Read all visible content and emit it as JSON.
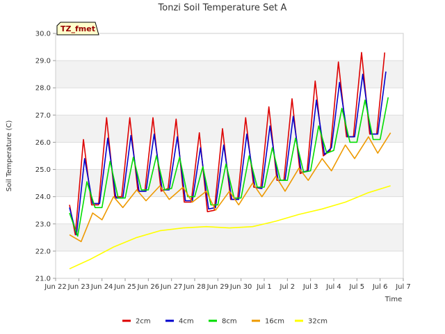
{
  "chart_data": {
    "type": "line",
    "title": "Tonzi Soil Temperature Set A",
    "xlabel": "Time",
    "ylabel": "Soil Temperature (C)",
    "site_label": "TZ_fmet",
    "xlim": [
      0,
      15
    ],
    "ylim": [
      21.0,
      30.0
    ],
    "x_tick_values": [
      0,
      1,
      2,
      3,
      4,
      5,
      6,
      7,
      8,
      9,
      10,
      11,
      12,
      13,
      14,
      15
    ],
    "x_tick_labels": [
      "Jun 22",
      "Jun 23",
      "Jun 24",
      "Jun 25",
      "Jun 26",
      "Jun 27",
      "Jun 28",
      "Jun 29",
      "Jun 30",
      "Jul 1",
      "Jul 2",
      "Jul 3",
      "Jul 4",
      "Jul 5",
      "Jul 6",
      "Jul 7"
    ],
    "y_tick_values": [
      21.0,
      22.0,
      23.0,
      24.0,
      25.0,
      26.0,
      27.0,
      28.0,
      29.0,
      30.0
    ],
    "y_tick_labels": [
      "21.0",
      "22.0",
      "23.0",
      "24.0",
      "25.0",
      "26.0",
      "27.0",
      "28.0",
      "29.0",
      "30.0"
    ],
    "grid": true,
    "legend_position": "bottom",
    "series": [
      {
        "name": "2cm",
        "color": "#dd0000",
        "x": [
          0.6,
          0.85,
          1.2,
          1.55,
          1.85,
          2.2,
          2.55,
          2.85,
          3.2,
          3.55,
          3.85,
          4.2,
          4.55,
          4.85,
          5.2,
          5.55,
          5.85,
          6.2,
          6.55,
          6.85,
          7.2,
          7.55,
          7.85,
          8.2,
          8.55,
          8.85,
          9.2,
          9.55,
          9.85,
          10.2,
          10.55,
          10.85,
          11.2,
          11.55,
          11.85,
          12.2,
          12.55,
          12.85,
          13.2,
          13.55,
          13.85,
          14.2
        ],
        "y": [
          23.7,
          22.6,
          26.1,
          23.7,
          23.7,
          26.9,
          24.0,
          24.0,
          26.9,
          24.2,
          24.2,
          26.9,
          24.2,
          24.3,
          26.85,
          23.8,
          23.8,
          26.35,
          23.45,
          23.5,
          26.5,
          23.9,
          23.9,
          26.9,
          24.35,
          24.3,
          27.3,
          24.6,
          24.6,
          27.6,
          24.85,
          24.95,
          28.25,
          25.5,
          25.7,
          28.95,
          26.2,
          26.2,
          29.3,
          26.3,
          26.3,
          29.3
        ]
      },
      {
        "name": "4cm",
        "color": "#0000cc",
        "x": [
          0.6,
          0.9,
          1.25,
          1.6,
          1.9,
          2.25,
          2.6,
          2.9,
          3.25,
          3.6,
          3.9,
          4.25,
          4.6,
          4.9,
          5.25,
          5.6,
          5.9,
          6.25,
          6.6,
          6.9,
          7.25,
          7.6,
          7.9,
          8.25,
          8.6,
          8.9,
          9.25,
          9.6,
          9.9,
          10.25,
          10.6,
          10.9,
          11.25,
          11.6,
          11.9,
          12.25,
          12.6,
          12.9,
          13.25,
          13.6,
          13.9,
          14.25
        ],
        "y": [
          23.6,
          22.6,
          25.4,
          23.75,
          23.75,
          26.15,
          23.95,
          23.95,
          26.25,
          24.2,
          24.2,
          26.3,
          24.25,
          24.25,
          26.2,
          23.85,
          23.85,
          25.8,
          23.55,
          23.6,
          25.9,
          23.9,
          23.9,
          26.3,
          24.35,
          24.3,
          26.6,
          24.6,
          24.6,
          26.95,
          24.9,
          24.95,
          27.55,
          25.55,
          25.8,
          28.2,
          26.2,
          26.2,
          28.5,
          26.3,
          26.3,
          28.6
        ]
      },
      {
        "name": "8cm",
        "color": "#00dd00",
        "x": [
          0.6,
          0.95,
          1.35,
          1.7,
          2.0,
          2.35,
          2.7,
          3.0,
          3.35,
          3.7,
          4.0,
          4.35,
          4.7,
          5.0,
          5.35,
          5.7,
          6.0,
          6.35,
          6.7,
          7.0,
          7.35,
          7.7,
          8.0,
          8.35,
          8.7,
          9.0,
          9.35,
          9.7,
          10.0,
          10.35,
          10.7,
          11.0,
          11.35,
          11.7,
          12.0,
          12.35,
          12.7,
          13.0,
          13.35,
          13.7,
          14.0,
          14.35
        ],
        "y": [
          23.4,
          22.55,
          24.55,
          23.6,
          23.6,
          25.3,
          23.95,
          23.95,
          25.45,
          24.25,
          24.25,
          25.5,
          24.25,
          24.3,
          25.45,
          24.0,
          24.0,
          25.1,
          23.7,
          23.7,
          25.2,
          23.95,
          23.95,
          25.5,
          24.35,
          24.35,
          25.8,
          24.6,
          24.6,
          26.15,
          24.9,
          24.95,
          26.6,
          25.6,
          25.7,
          27.25,
          26.0,
          26.0,
          27.55,
          26.1,
          26.1,
          27.65
        ]
      },
      {
        "name": "16cm",
        "color": "#ee9900",
        "x": [
          0.6,
          1.1,
          1.6,
          2.0,
          2.5,
          2.9,
          3.5,
          3.9,
          4.5,
          4.9,
          5.5,
          5.9,
          6.5,
          6.9,
          7.5,
          7.9,
          8.5,
          8.9,
          9.5,
          9.9,
          10.5,
          10.9,
          11.5,
          11.9,
          12.5,
          12.9,
          13.5,
          13.9,
          14.45
        ],
        "y": [
          22.6,
          22.35,
          23.4,
          23.15,
          24.0,
          23.6,
          24.25,
          23.85,
          24.4,
          23.9,
          24.35,
          23.8,
          24.2,
          23.5,
          24.2,
          23.7,
          24.5,
          24.0,
          24.75,
          24.2,
          25.05,
          24.6,
          25.4,
          24.95,
          25.9,
          25.4,
          26.2,
          25.6,
          26.35
        ]
      },
      {
        "name": "32cm",
        "color": "#ffff00",
        "x": [
          0.6,
          1.5,
          2.5,
          3.5,
          4.5,
          5.5,
          6.5,
          7.5,
          8.5,
          9.5,
          10.5,
          11.5,
          12.5,
          13.5,
          14.45
        ],
        "y": [
          21.35,
          21.7,
          22.15,
          22.5,
          22.75,
          22.85,
          22.9,
          22.85,
          22.9,
          23.1,
          23.35,
          23.55,
          23.8,
          24.15,
          24.4
        ]
      }
    ]
  }
}
